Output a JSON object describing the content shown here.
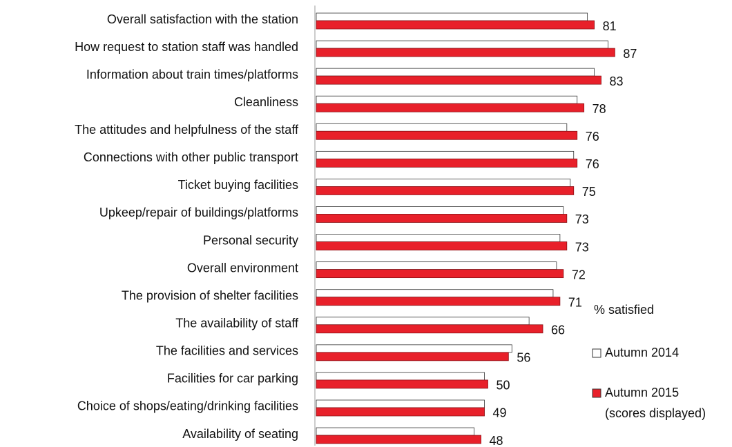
{
  "chart_data": {
    "type": "hbar",
    "categories": [
      "Overall satisfaction with the station",
      "How request to station staff was handled",
      "Information about train times/platforms",
      "Cleanliness",
      "The attitudes and helpfulness of the staff",
      "Connections with other public transport",
      "Ticket buying facilities",
      "Upkeep/repair of buildings/platforms",
      "Personal security",
      "Overall environment",
      "The provision of shelter facilities",
      "The availability of staff",
      "The facilities and services",
      "Facilities for car parking",
      "Choice of shops/eating/drinking facilities",
      "Availability of seating"
    ],
    "series": [
      {
        "name": "Autumn 2014",
        "color": "#ffffff",
        "values": [
          79,
          85,
          81,
          76,
          73,
          75,
          74,
          72,
          71,
          70,
          69,
          62,
          57,
          49,
          49,
          46
        ]
      },
      {
        "name": "Autumn 2015",
        "color": "#e8202a",
        "values": [
          81,
          87,
          83,
          78,
          76,
          76,
          75,
          73,
          73,
          72,
          71,
          66,
          56,
          50,
          49,
          48
        ]
      }
    ],
    "value_labels_series": "Autumn 2015",
    "legend_title": "% satisfied",
    "legend_note": "(scores displayed)",
    "xlim": [
      0,
      100
    ]
  }
}
